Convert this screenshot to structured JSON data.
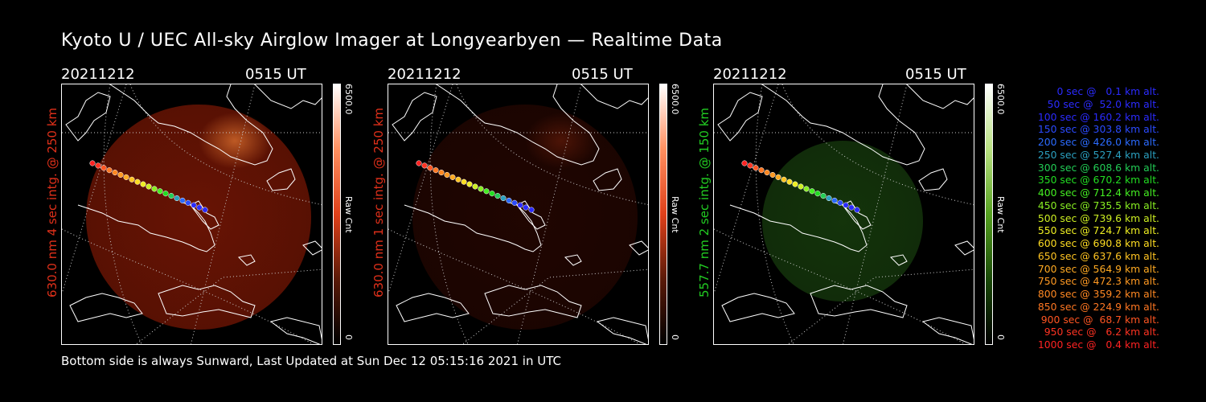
{
  "title": "Kyoto U / UEC All-sky Airglow Imager at Longyearbyen — Realtime Data",
  "footer": "Bottom side is always Sunward, Last Updated at Sun Dec 12 05:15:16 2021 in UTC",
  "colors": {
    "red": "#e0301a",
    "green": "#22cc22",
    "blue": "#3333ff"
  },
  "panels": [
    {
      "date": "20211212",
      "time": "0515 UT",
      "label": "630.0 nm 4 sec intg. @ 250 km",
      "cbar_max": "6500.0",
      "cbar_min": "0",
      "cbar_unit": "Raw Cnt",
      "channel": "red-bright"
    },
    {
      "date": "20211212",
      "time": "0515 UT",
      "label": "630.0 nm 1 sec intg. @ 250 km",
      "cbar_max": "6500.0",
      "cbar_min": "0",
      "cbar_unit": "Raw Cnt",
      "channel": "red-dim"
    },
    {
      "date": "20211212",
      "time": "0515 UT",
      "label": "557.7 nm 2 sec intg. @ 150 km",
      "cbar_max": "6500.0",
      "cbar_min": "0",
      "cbar_unit": "Raw Cnt",
      "channel": "green"
    }
  ],
  "legend": [
    {
      "text": "0 sec @   0.1 km alt.",
      "color": "#2b2bff"
    },
    {
      "text": "50 sec @  52.0 km alt.",
      "color": "#2b2bff"
    },
    {
      "text": "100 sec @ 160.2 km alt.",
      "color": "#2b2bff"
    },
    {
      "text": "150 sec @ 303.8 km alt.",
      "color": "#2b4bff"
    },
    {
      "text": "200 sec @ 426.0 km alt.",
      "color": "#2b6bff"
    },
    {
      "text": "250 sec @ 527.4 km alt.",
      "color": "#2ba0c0"
    },
    {
      "text": "300 sec @ 608.6 km alt.",
      "color": "#22cc55"
    },
    {
      "text": "350 sec @ 670.2 km alt.",
      "color": "#22dd22"
    },
    {
      "text": "400 sec @ 712.4 km alt.",
      "color": "#44ee22"
    },
    {
      "text": "450 sec @ 735.5 km alt.",
      "color": "#88ee22"
    },
    {
      "text": "500 sec @ 739.6 km alt.",
      "color": "#ccee22"
    },
    {
      "text": "550 sec @ 724.7 km alt.",
      "color": "#eeee22"
    },
    {
      "text": "600 sec @ 690.8 km alt.",
      "color": "#ffdd22"
    },
    {
      "text": "650 sec @ 637.6 km alt.",
      "color": "#ffc422"
    },
    {
      "text": "700 sec @ 564.9 km alt.",
      "color": "#ffaa22"
    },
    {
      "text": "750 sec @ 472.3 km alt.",
      "color": "#ff9922"
    },
    {
      "text": "800 sec @ 359.2 km alt.",
      "color": "#ff8822"
    },
    {
      "text": "850 sec @ 224.9 km alt.",
      "color": "#ff7722"
    },
    {
      "text": "900 sec @  68.7 km alt.",
      "color": "#ff5522"
    },
    {
      "text": "950 sec @   6.2 km alt.",
      "color": "#ff3322"
    },
    {
      "text": "1000 sec @   0.4 km alt.",
      "color": "#ff2222"
    }
  ]
}
